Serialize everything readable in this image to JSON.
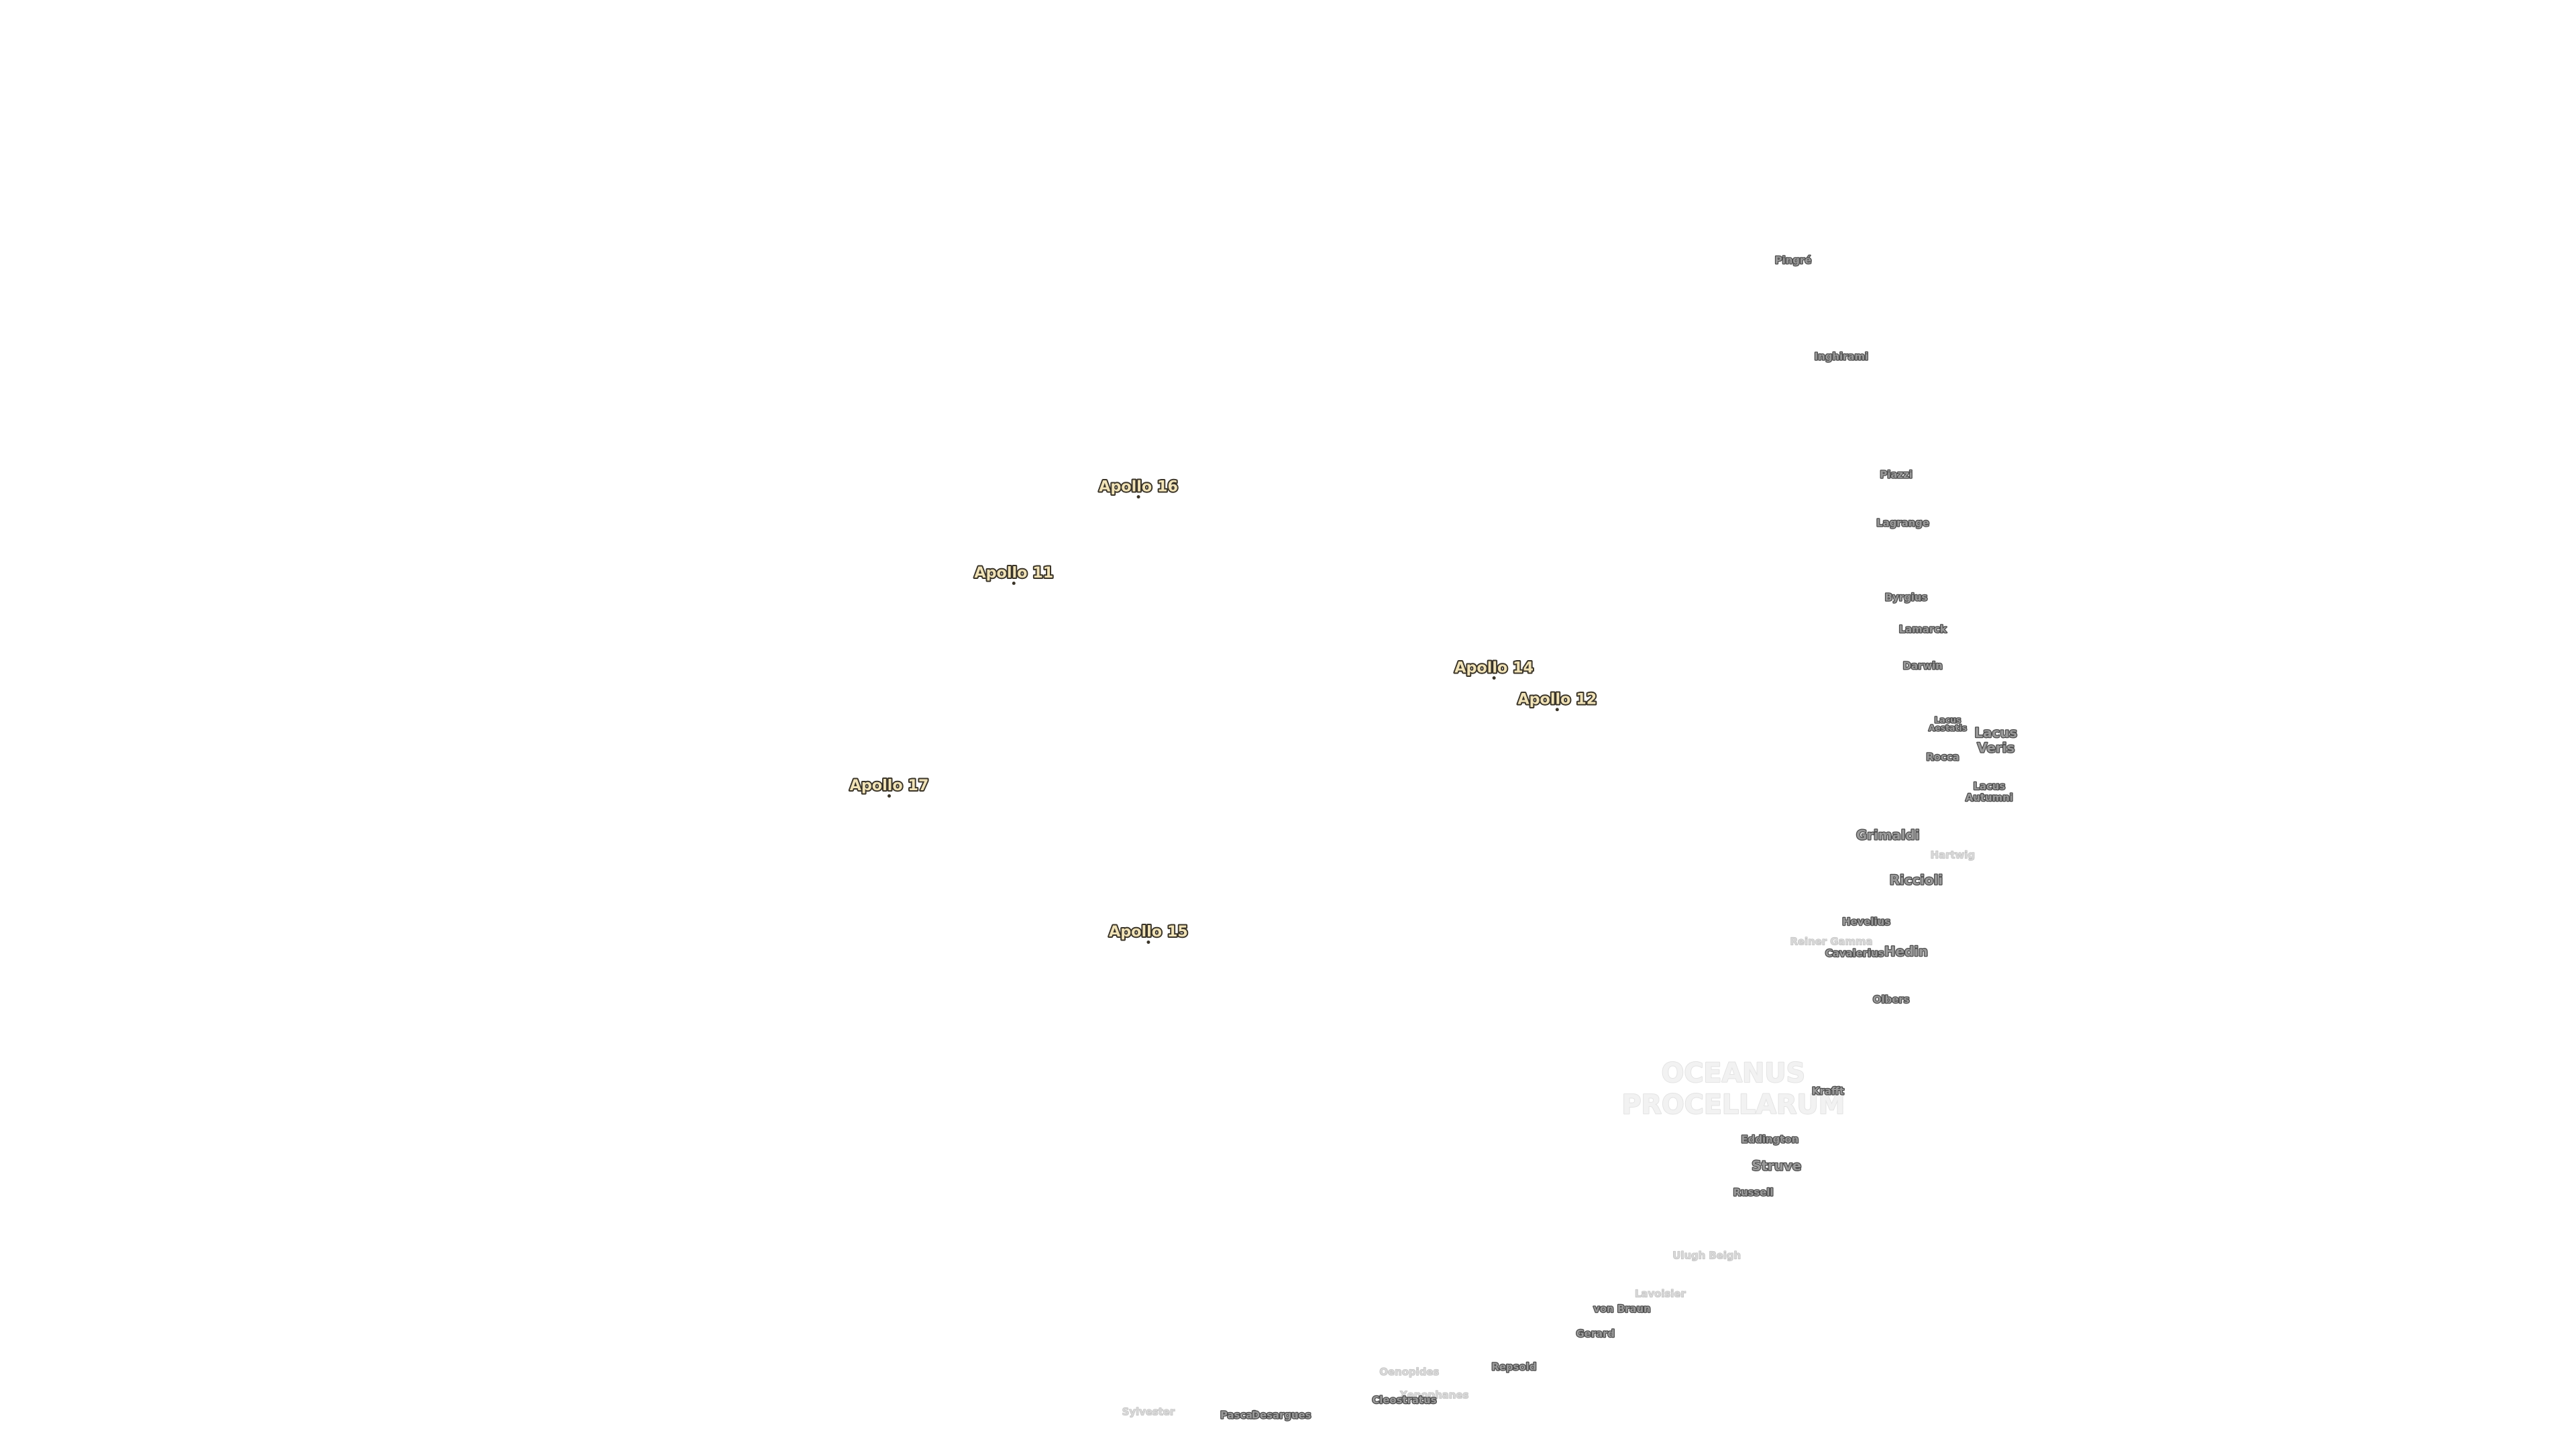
{
  "apollo_sites": [
    "Apollo 16",
    "Apollo 11",
    "Apollo 14",
    "Apollo 12",
    "Apollo 17",
    "Apollo 15"
  ],
  "mare": {
    "lines": [
      "OCEANUS",
      "PROCELLARUM"
    ]
  },
  "features": [
    {
      "lines": [
        "Pingré"
      ]
    },
    {
      "lines": [
        "Inghirami"
      ]
    },
    {
      "lines": [
        "Piazzi"
      ]
    },
    {
      "lines": [
        "Lagrange"
      ]
    },
    {
      "lines": [
        "Byrgius"
      ]
    },
    {
      "lines": [
        "Lamarck"
      ]
    },
    {
      "lines": [
        "Darwin"
      ]
    },
    {
      "lines": [
        "Lacus",
        "Aestatis"
      ]
    },
    {
      "lines": [
        "Lacus",
        "Veris"
      ]
    },
    {
      "lines": [
        "Rocca"
      ]
    },
    {
      "lines": [
        "Lacus",
        "Autumni"
      ]
    },
    {
      "lines": [
        "Grimaldi"
      ]
    },
    {
      "lines": [
        "Hartwig"
      ]
    },
    {
      "lines": [
        "Riccioli"
      ]
    },
    {
      "lines": [
        "Hevelius"
      ]
    },
    {
      "lines": [
        "Reiner Gamma"
      ]
    },
    {
      "lines": [
        "Cavalerius"
      ]
    },
    {
      "lines": [
        "Hedin"
      ]
    },
    {
      "lines": [
        "Olbers"
      ]
    },
    {
      "lines": [
        "Krafft"
      ]
    },
    {
      "lines": [
        "Eddington"
      ]
    },
    {
      "lines": [
        "Struve"
      ]
    },
    {
      "lines": [
        "Russell"
      ]
    },
    {
      "lines": [
        "Ulugh Beigh"
      ]
    },
    {
      "lines": [
        "Lavoisier"
      ]
    },
    {
      "lines": [
        "von Braun"
      ]
    },
    {
      "lines": [
        "Gerard"
      ]
    },
    {
      "lines": [
        "Repsold"
      ]
    },
    {
      "lines": [
        "Oenopides"
      ]
    },
    {
      "lines": [
        "Xenophanes"
      ]
    },
    {
      "lines": [
        "Cleostratus"
      ]
    },
    {
      "lines": [
        "Sylvester"
      ]
    },
    {
      "lines": [
        "Pascal"
      ]
    },
    {
      "lines": [
        "Desargues"
      ]
    }
  ]
}
